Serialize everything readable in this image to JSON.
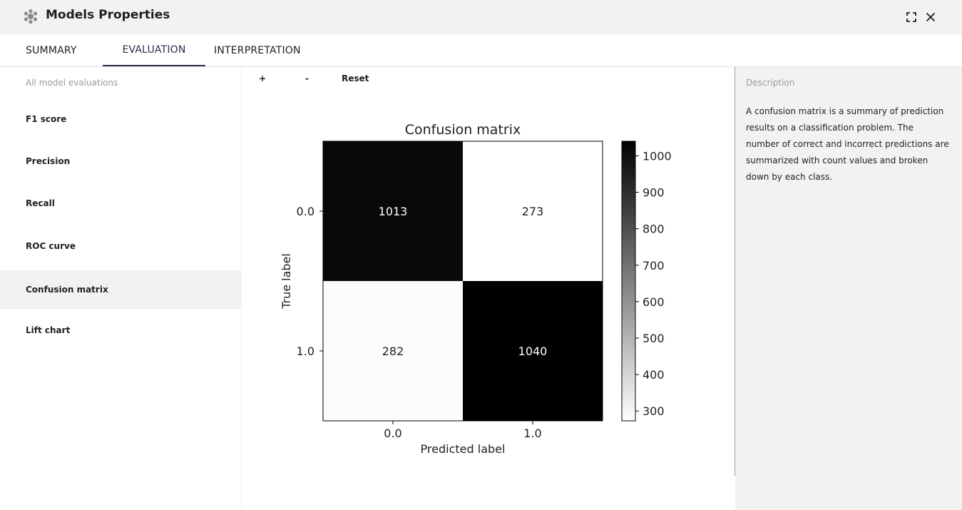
{
  "window": {
    "title": "Models Properties"
  },
  "tabs": [
    {
      "label": "SUMMARY",
      "active": false
    },
    {
      "label": "EVALUATION",
      "active": true
    },
    {
      "label": "INTERPRETATION",
      "active": false
    }
  ],
  "sidebar": {
    "header": "All model evaluations",
    "items": [
      {
        "label": "F1 score",
        "active": false
      },
      {
        "label": "Precision",
        "active": false
      },
      {
        "label": "Recall",
        "active": false
      },
      {
        "label": "ROC curve",
        "active": false
      },
      {
        "label": "Confusion matrix",
        "active": true
      },
      {
        "label": "Lift chart",
        "active": false
      }
    ]
  },
  "toolbar": {
    "zoom_in": "+",
    "zoom_out": "-",
    "reset": "Reset"
  },
  "description": {
    "header": "Description",
    "text": "A confusion matrix is a summary of prediction results on a classification problem. The number of correct and incorrect predictions are summarized with count values and broken down by each class."
  },
  "colors": {
    "active_tab": "#2a2f4a",
    "titlebar_bg": "#f2f2f2",
    "panel_bg": "#f2f2f2"
  },
  "icons": {
    "logo": "brain-icon",
    "maximize": "maximize-icon",
    "close": "close-icon"
  },
  "chart_data": {
    "type": "heatmap",
    "title": "Confusion matrix",
    "xlabel": "Predicted label",
    "ylabel": "True label",
    "x_categories": [
      "0.0",
      "1.0"
    ],
    "y_categories": [
      "0.0",
      "1.0"
    ],
    "values": [
      [
        1013,
        273
      ],
      [
        282,
        1040
      ]
    ],
    "colorbar": {
      "ticks": [
        300,
        400,
        500,
        600,
        700,
        800,
        900,
        1000
      ],
      "range": [
        273,
        1040
      ],
      "cmap": "gray_r"
    }
  }
}
